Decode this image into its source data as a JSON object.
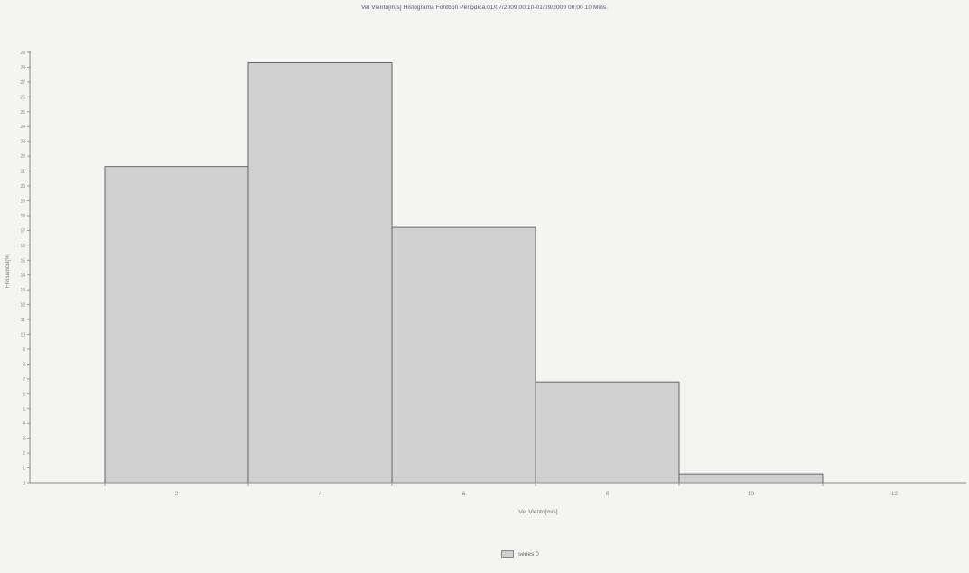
{
  "chart_data": {
    "type": "bar",
    "title": "Vel Viento[m/s] Histograma Fontbon  Periodica:01/07/2009 00:10-01/09/2009 00:00 10 Mins.",
    "xlabel": "Vel Viento[m/s]",
    "ylabel": "Frecuencia[%]",
    "ylim": [
      0,
      29
    ],
    "y_ticks": [
      0,
      1,
      2,
      3,
      4,
      5,
      6,
      7,
      8,
      9,
      10,
      11,
      12,
      13,
      14,
      15,
      16,
      17,
      18,
      19,
      20,
      21,
      22,
      23,
      24,
      25,
      26,
      27,
      28,
      29
    ],
    "x_ticks": [
      "2",
      "4",
      "6",
      "8",
      "10",
      "12"
    ],
    "series": [
      {
        "name": "series 0",
        "values": [
          21.3,
          28.3,
          17.2,
          6.8,
          0.6
        ]
      }
    ],
    "grid": false,
    "legend_position": "bottom"
  },
  "colors": {
    "bar_fill": "#d0d0d0",
    "bar_stroke": "#666666",
    "axis": "#888888",
    "background": "#f4f4f2"
  }
}
